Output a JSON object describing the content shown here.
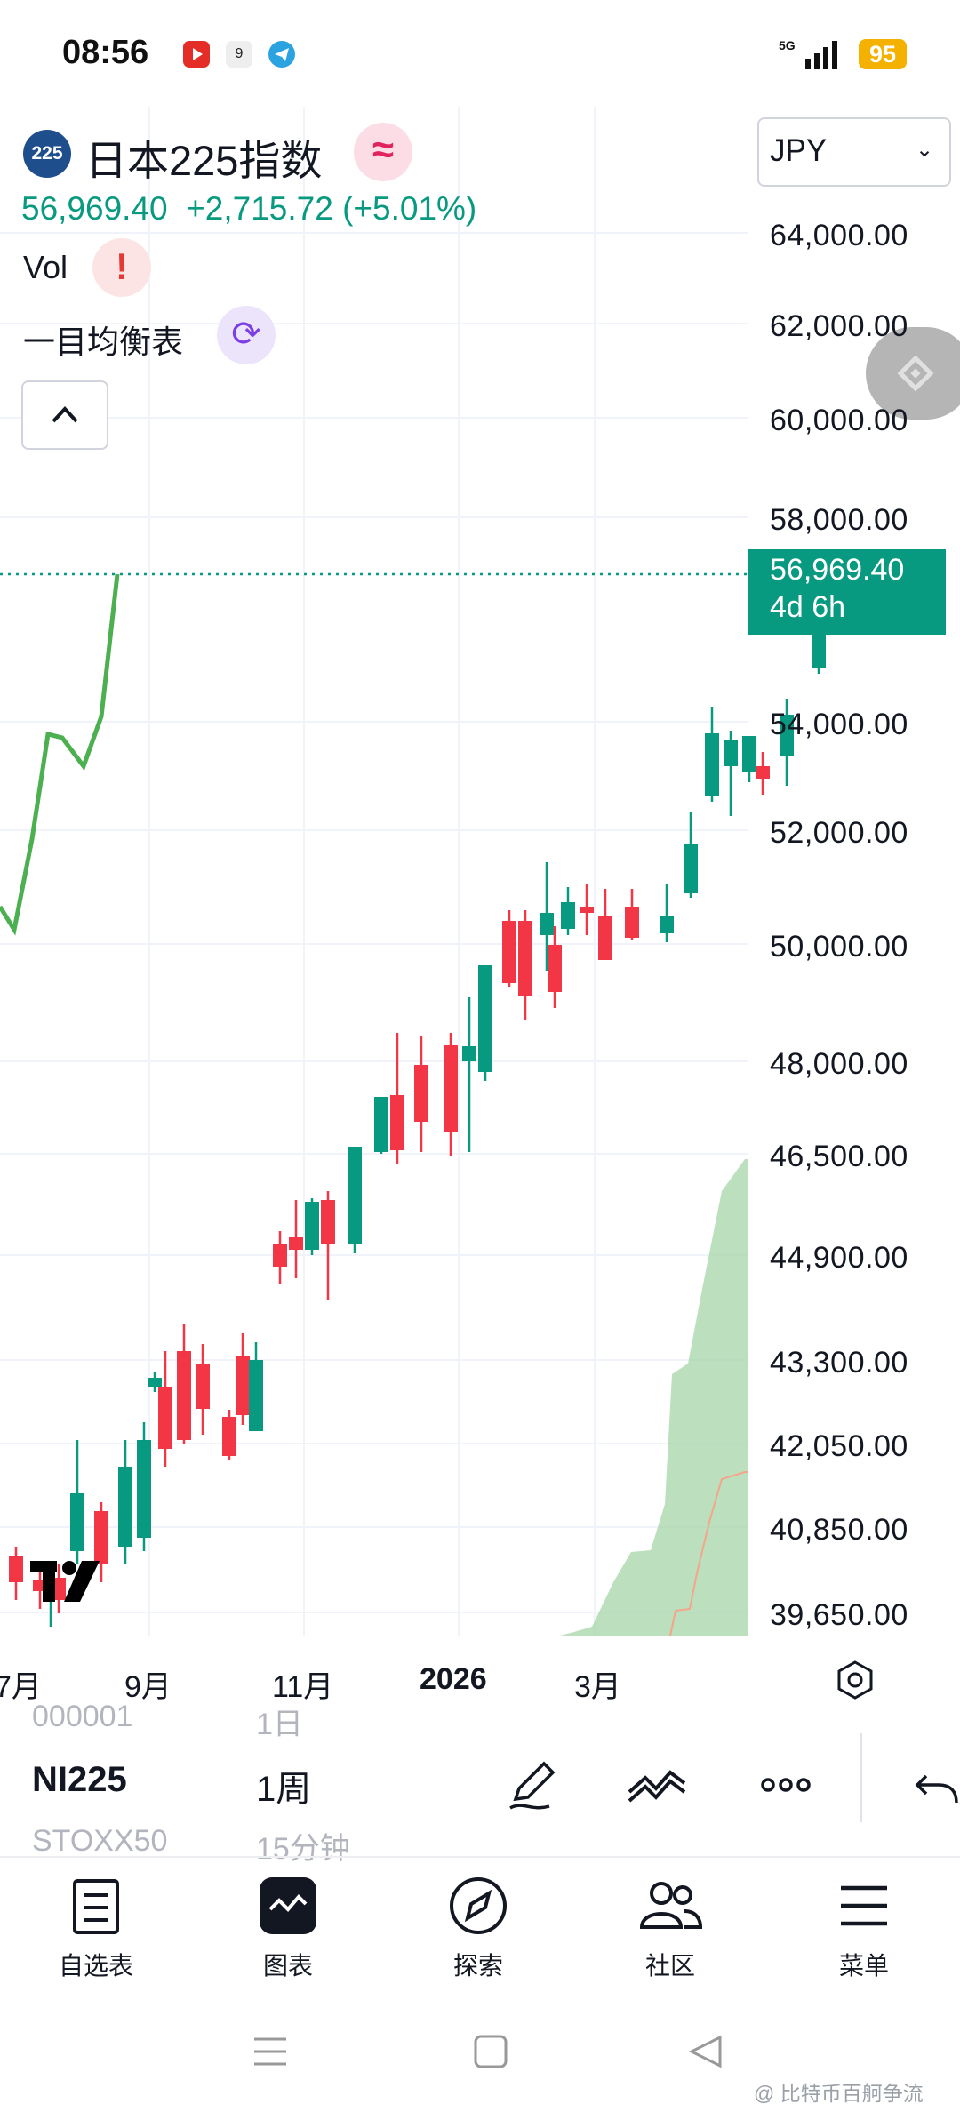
{
  "status_bar": {
    "time": "08:56",
    "battery": "95",
    "network": "5G",
    "notification_icons": [
      "youtube-icon",
      "app-9-icon",
      "telegram-icon"
    ]
  },
  "legend": {
    "symbol_badge": "225",
    "symbol_name": "日本225指数",
    "price": "56,969.40",
    "change": "+2,715.72 (+5.01%)",
    "vol_label": "Vol",
    "indicator_label": "一目均衡表"
  },
  "currency": {
    "selected": "JPY"
  },
  "price_axis": [
    "64,000.00",
    "62,000.00",
    "60,000.00",
    "58,000.00",
    "54,000.00",
    "52,000.00",
    "50,000.00",
    "48,000.00",
    "46,500.00",
    "44,900.00",
    "43,300.00",
    "42,050.00",
    "40,850.00",
    "39,650.00"
  ],
  "last_price": {
    "value": "56,969.40",
    "countdown": "4d 6h"
  },
  "time_axis": [
    "7月",
    "9月",
    "11月",
    "2026",
    "3月"
  ],
  "toolbar": {
    "symbol_ghost_top": "000001",
    "symbol": "NI225",
    "symbol_ghost_bottom": "STOXX50",
    "interval_ghost_top": "1日",
    "interval": "1周",
    "interval_ghost_bottom": "15分钟"
  },
  "nav": [
    {
      "label": "自选表",
      "icon": "watchlist-icon"
    },
    {
      "label": "图表",
      "icon": "chart-icon"
    },
    {
      "label": "探索",
      "icon": "compass-icon"
    },
    {
      "label": "社区",
      "icon": "community-icon"
    },
    {
      "label": "菜单",
      "icon": "menu-icon"
    }
  ],
  "watermark": "@ 比特币百舸争流",
  "colors": {
    "up": "#089981",
    "down": "#f23645",
    "ichimoku_line": "#4caf50",
    "cloud": "#a5d6a7"
  }
}
